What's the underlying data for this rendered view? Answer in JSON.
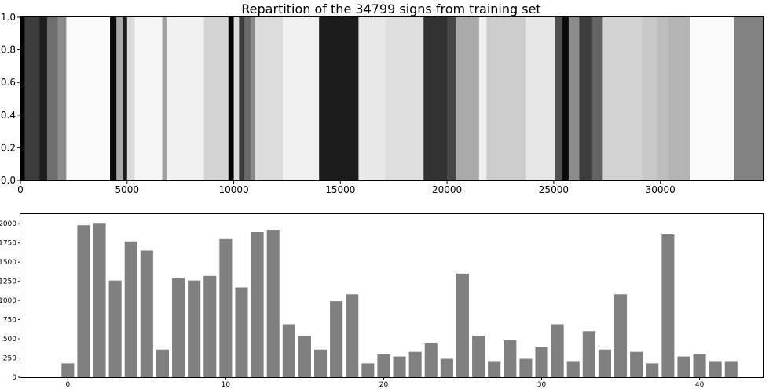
{
  "chart_data": [
    {
      "type": "heatmap",
      "title": "Repartition of the 34799 signs from training set",
      "xlim": [
        0,
        34799
      ],
      "ylim": [
        0,
        1
      ],
      "xticks": [
        0,
        5000,
        10000,
        15000,
        20000,
        25000,
        30000
      ],
      "yticks": [
        0.0,
        0.2,
        0.4,
        0.6,
        0.8,
        1.0
      ],
      "colormap": "grayscale",
      "segments": [
        {
          "start": 0,
          "end": 200,
          "gray": "#000000"
        },
        {
          "start": 200,
          "end": 900,
          "gray": "#3c3c3c"
        },
        {
          "start": 900,
          "end": 1250,
          "gray": "#1e1e1e"
        },
        {
          "start": 1250,
          "end": 1750,
          "gray": "#6e6e6e"
        },
        {
          "start": 1750,
          "end": 2150,
          "gray": "#8c8c8c"
        },
        {
          "start": 2150,
          "end": 4200,
          "gray": "#fafafa"
        },
        {
          "start": 4200,
          "end": 4500,
          "gray": "#0a0a0a"
        },
        {
          "start": 4500,
          "end": 4800,
          "gray": "#aaaaaa"
        },
        {
          "start": 4800,
          "end": 5000,
          "gray": "#1e1e1e"
        },
        {
          "start": 5000,
          "end": 5350,
          "gray": "#dcdcdc"
        },
        {
          "start": 5350,
          "end": 6650,
          "gray": "#f5f5f5"
        },
        {
          "start": 6650,
          "end": 6850,
          "gray": "#a0a0a0"
        },
        {
          "start": 6850,
          "end": 8600,
          "gray": "#f0f0f0"
        },
        {
          "start": 8600,
          "end": 9750,
          "gray": "#d4d4d4"
        },
        {
          "start": 9750,
          "end": 10000,
          "gray": "#000000"
        },
        {
          "start": 10000,
          "end": 10250,
          "gray": "#dcdcdc"
        },
        {
          "start": 10250,
          "end": 10500,
          "gray": "#3c3c3c"
        },
        {
          "start": 10500,
          "end": 10800,
          "gray": "#6a6a6a"
        },
        {
          "start": 10800,
          "end": 11000,
          "gray": "#8c8c8c"
        },
        {
          "start": 11000,
          "end": 12300,
          "gray": "#dcdcdc"
        },
        {
          "start": 12300,
          "end": 14000,
          "gray": "#f0f0f0"
        },
        {
          "start": 14000,
          "end": 15850,
          "gray": "#1c1c1c"
        },
        {
          "start": 15850,
          "end": 17100,
          "gray": "#e8e8e8"
        },
        {
          "start": 17100,
          "end": 18900,
          "gray": "#dedede"
        },
        {
          "start": 18900,
          "end": 20000,
          "gray": "#323232"
        },
        {
          "start": 20000,
          "end": 20400,
          "gray": "#464646"
        },
        {
          "start": 20400,
          "end": 21500,
          "gray": "#aaaaaa"
        },
        {
          "start": 21500,
          "end": 21850,
          "gray": "#f0f0f0"
        },
        {
          "start": 21850,
          "end": 23700,
          "gray": "#cccccc"
        },
        {
          "start": 23700,
          "end": 25050,
          "gray": "#e6e6e6"
        },
        {
          "start": 25050,
          "end": 25400,
          "gray": "#505050"
        },
        {
          "start": 25400,
          "end": 25700,
          "gray": "#0a0a0a"
        },
        {
          "start": 25700,
          "end": 26200,
          "gray": "#8c8c8c"
        },
        {
          "start": 26200,
          "end": 26800,
          "gray": "#3c3c3c"
        },
        {
          "start": 26800,
          "end": 27300,
          "gray": "#646464"
        },
        {
          "start": 27300,
          "end": 29150,
          "gray": "#d2d2d2"
        },
        {
          "start": 29150,
          "end": 29850,
          "gray": "#c8c8c8"
        },
        {
          "start": 29850,
          "end": 30400,
          "gray": "#bebebe"
        },
        {
          "start": 30400,
          "end": 31400,
          "gray": "#b4b4b4"
        },
        {
          "start": 31400,
          "end": 33450,
          "gray": "#fafafa"
        },
        {
          "start": 33450,
          "end": 34799,
          "gray": "#828282"
        }
      ]
    },
    {
      "type": "bar",
      "categories": [
        0,
        1,
        2,
        3,
        4,
        5,
        6,
        7,
        8,
        9,
        10,
        11,
        12,
        13,
        14,
        15,
        16,
        17,
        18,
        19,
        20,
        21,
        22,
        23,
        24,
        25,
        26,
        27,
        28,
        29,
        30,
        31,
        32,
        33,
        34,
        35,
        36,
        37,
        38,
        39,
        40,
        41,
        42
      ],
      "values": [
        180,
        1980,
        2010,
        1260,
        1770,
        1650,
        360,
        1290,
        1260,
        1320,
        1800,
        1170,
        1890,
        1920,
        690,
        540,
        360,
        990,
        1080,
        180,
        300,
        270,
        330,
        450,
        240,
        1350,
        540,
        210,
        480,
        240,
        390,
        690,
        210,
        600,
        360,
        1080,
        330,
        180,
        1860,
        270,
        300,
        210,
        210
      ],
      "xticks": [
        0,
        10,
        20,
        30,
        40
      ],
      "yticks": [
        0,
        250,
        500,
        750,
        1000,
        1250,
        1500,
        1750,
        2000
      ],
      "ytick_labels": [
        "0",
        "250",
        "500",
        "750",
        "1000",
        "1250",
        "1500",
        "1750",
        "2000"
      ],
      "xlim": [
        -3,
        44
      ],
      "ylim": [
        0,
        2125
      ],
      "bar_color": "#808080"
    }
  ]
}
